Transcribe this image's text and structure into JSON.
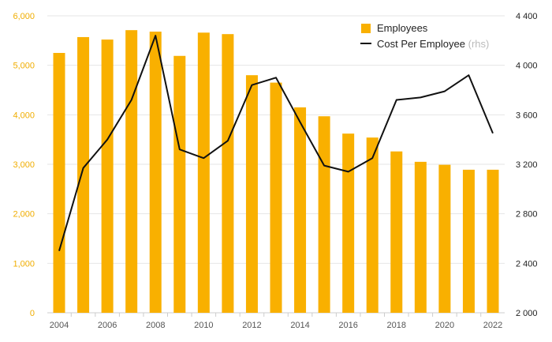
{
  "chart_data": {
    "type": "bar",
    "x": [
      2004,
      2005,
      2006,
      2007,
      2008,
      2009,
      2010,
      2011,
      2012,
      2013,
      2014,
      2015,
      2016,
      2017,
      2018,
      2019,
      2020,
      2021,
      2022
    ],
    "x_tick_labels": [
      "2004",
      "2006",
      "2008",
      "2010",
      "2012",
      "2014",
      "2016",
      "2018",
      "2020",
      "2022"
    ],
    "series": [
      {
        "name": "Employees",
        "type": "bar",
        "axis": "left",
        "color": "#f9b000",
        "values": [
          5250,
          5570,
          5520,
          5710,
          5680,
          5190,
          5660,
          5630,
          4800,
          4650,
          4150,
          3970,
          3620,
          3540,
          3260,
          3050,
          2990,
          2890,
          2890
        ]
      },
      {
        "name": "Cost Per Employee",
        "suffix": "(rhs)",
        "type": "line",
        "axis": "right",
        "color": "#111111",
        "values": [
          2500,
          3170,
          3400,
          3720,
          4240,
          3320,
          3250,
          3390,
          3840,
          3900,
          3540,
          3190,
          3140,
          3250,
          3720,
          3740,
          3790,
          3920,
          3450
        ]
      }
    ],
    "y_left": {
      "ylim": [
        0,
        6000
      ],
      "ticks": [
        0,
        1000,
        2000,
        3000,
        4000,
        5000,
        6000
      ],
      "tick_labels": [
        "0",
        "1,000",
        "2,000",
        "3,000",
        "4,000",
        "5,000",
        "6,000"
      ]
    },
    "y_right": {
      "ylim": [
        2000,
        4400
      ],
      "ticks": [
        2000,
        2400,
        2800,
        3200,
        3600,
        4000,
        4400
      ],
      "tick_labels": [
        "2 000",
        "2 400",
        "2 800",
        "3 200",
        "3 600",
        "4 000",
        "4 400"
      ]
    },
    "grid": true,
    "legend_position": "top-right"
  }
}
